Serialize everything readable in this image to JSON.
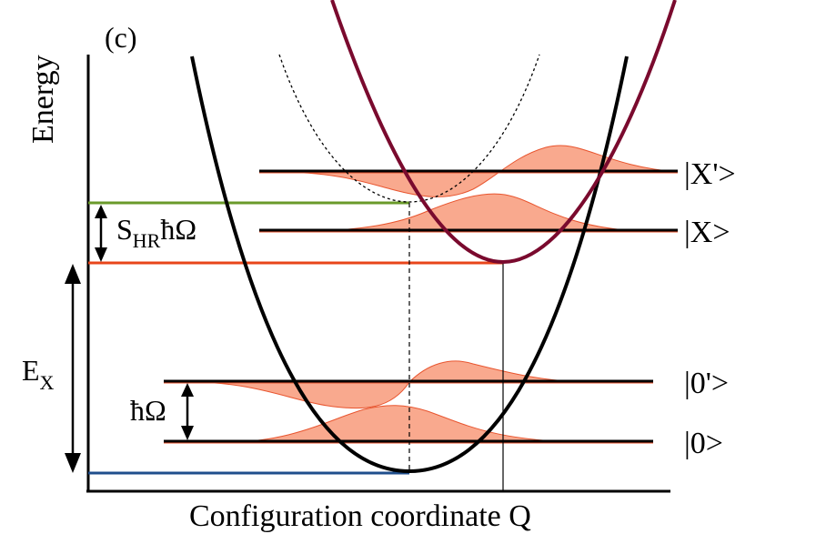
{
  "panel_label": "(c)",
  "y_axis_label": "Energy",
  "x_axis_label": "Configuration coordinate Q",
  "levels": {
    "x_prime": "|X'>",
    "x": "|X>",
    "zero_prime": "|0'>",
    "zero": "|0>"
  },
  "annotations": {
    "huang_rhys_main": "S",
    "huang_rhys_sub": "HR",
    "huang_rhys_tail": "ħΩ",
    "exciton_energy_main": "E",
    "exciton_energy_sub": "X",
    "phonon_energy": "ħΩ"
  },
  "colors": {
    "ground_parabola": "#000000",
    "excited_parabola": "#7a0a2e",
    "wavefunction_fill": "#f9a98e",
    "wavefunction_stroke": "#e8552f",
    "green_line": "#6a9a2a",
    "orange_line": "#e8451a",
    "blue_line": "#1f4e8c"
  }
}
